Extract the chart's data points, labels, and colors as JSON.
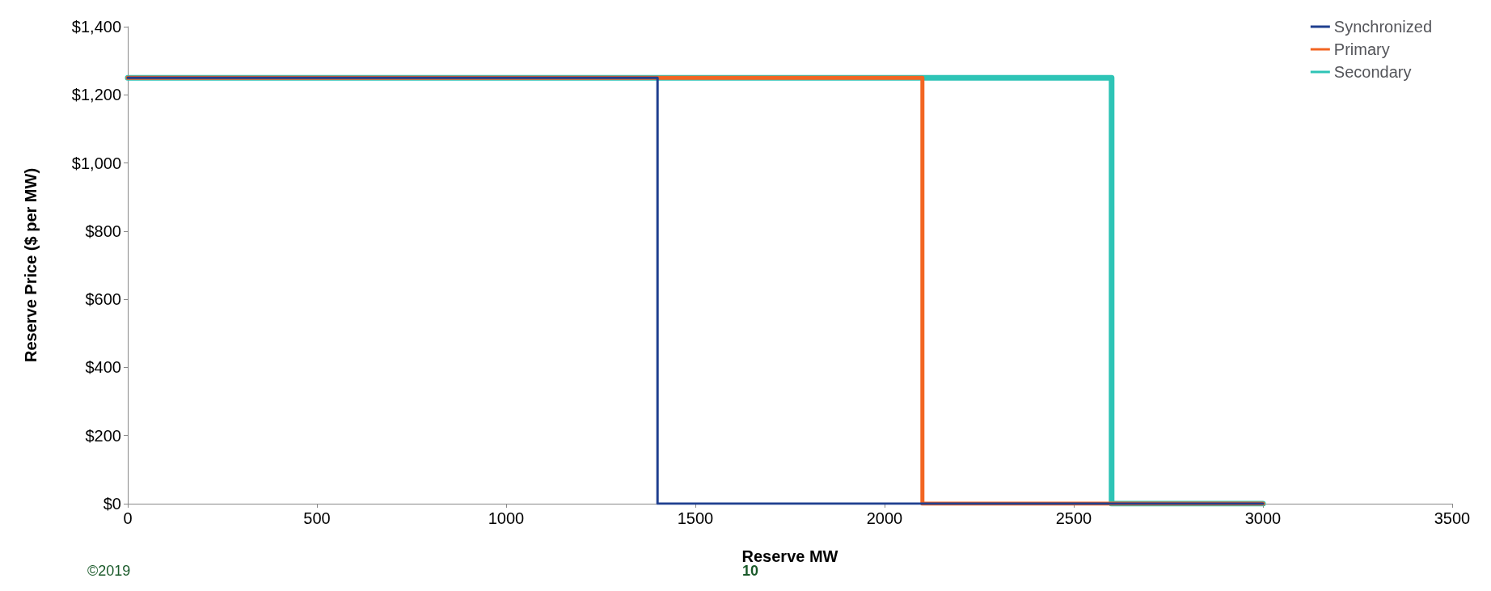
{
  "chart_data": {
    "type": "line",
    "xlabel": "Reserve MW",
    "ylabel": "Reserve Price ($ per MW)",
    "series": [
      {
        "name": "Secondary",
        "color": "#2ec4b6",
        "x": [
          0,
          2600,
          2600,
          3000
        ],
        "values": [
          1250,
          1250,
          0,
          0
        ]
      },
      {
        "name": "Primary",
        "color": "#f26522",
        "x": [
          0,
          2100,
          2100,
          3000
        ],
        "values": [
          1250,
          1250,
          0,
          0
        ]
      },
      {
        "name": "Synchronized",
        "color": "#1f3f8f",
        "x": [
          0,
          1400,
          1400,
          3000
        ],
        "values": [
          1250,
          1250,
          0,
          0
        ]
      }
    ],
    "xlim": [
      0,
      3500
    ],
    "xticks": [
      0,
      500,
      1000,
      1500,
      2000,
      2500,
      3000,
      3500
    ],
    "ylim": [
      0,
      1400
    ],
    "yticks": [
      {
        "value": 0,
        "label": "$0"
      },
      {
        "value": 200,
        "label": "$200"
      },
      {
        "value": 400,
        "label": "$400"
      },
      {
        "value": 600,
        "label": "$600"
      },
      {
        "value": 800,
        "label": "$800"
      },
      {
        "value": 1000,
        "label": "$1,000"
      },
      {
        "value": 1200,
        "label": "$1,200"
      },
      {
        "value": 1400,
        "label": "$1,400"
      }
    ],
    "grid": false,
    "legend": "top right",
    "marker": "none",
    "line_style": "solid",
    "annotations": [
      "©2019",
      "10"
    ]
  }
}
